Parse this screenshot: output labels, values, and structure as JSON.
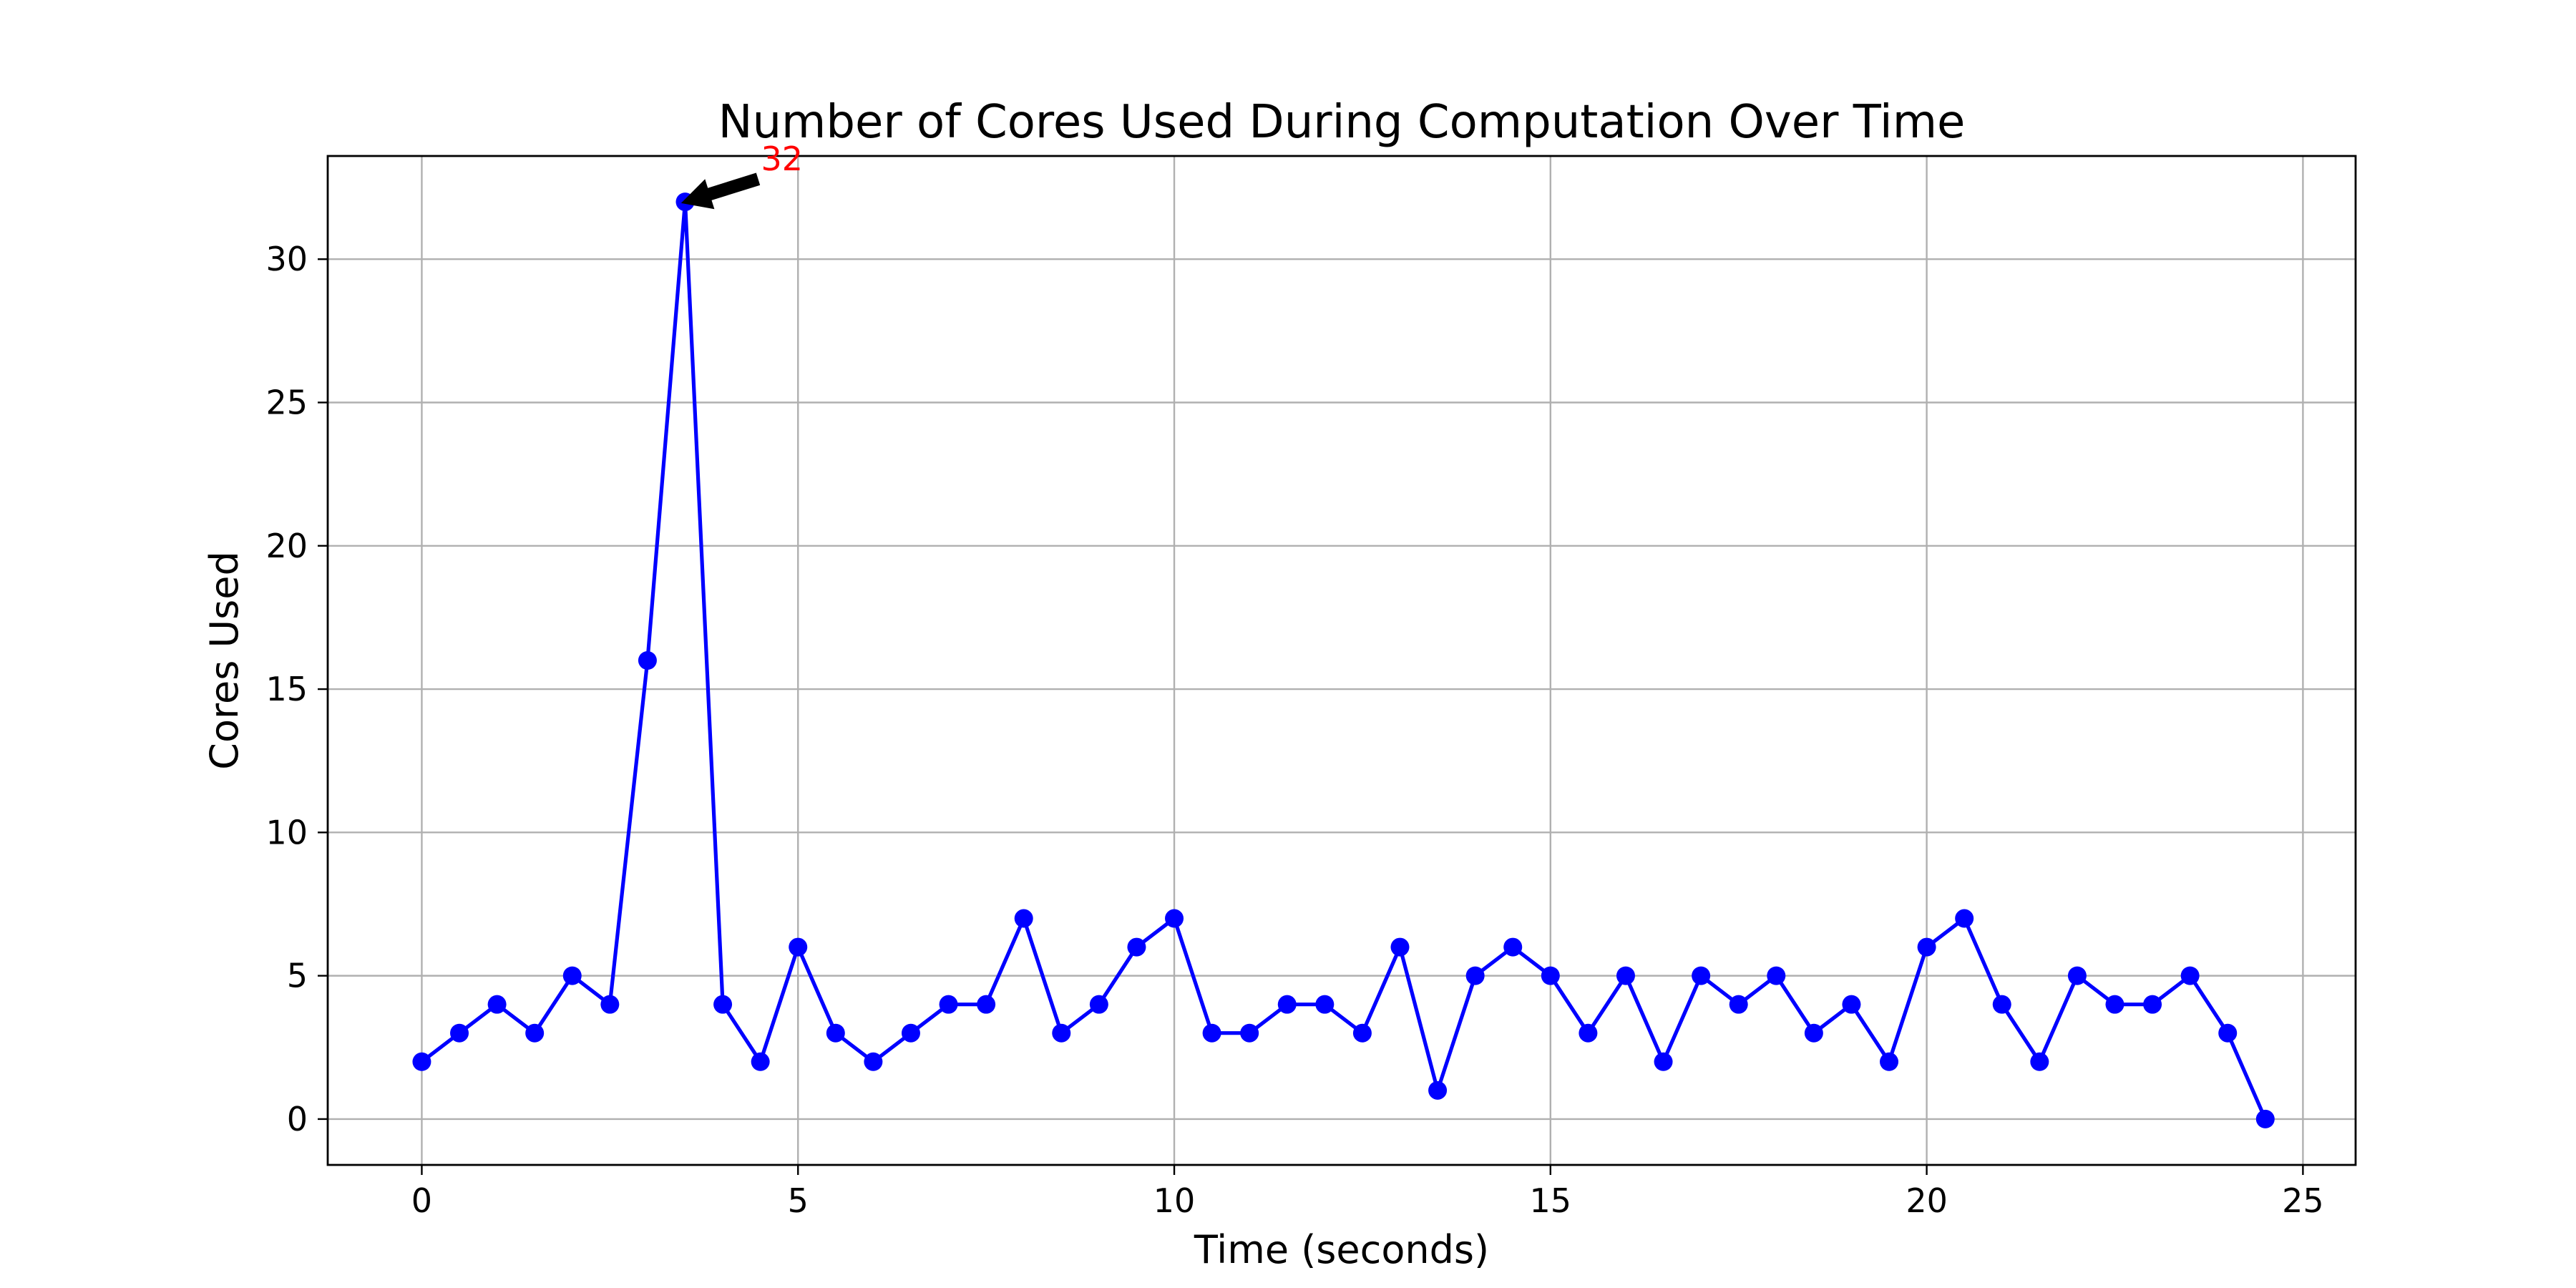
{
  "chart_data": {
    "type": "line",
    "title": "Number of Cores Used During Computation Over Time",
    "xlabel": "Time (seconds)",
    "ylabel": "Cores Used",
    "xlim": [
      -1.25,
      25.7
    ],
    "ylim": [
      -1.6,
      33.6
    ],
    "xticks": [
      0,
      5,
      10,
      15,
      20,
      25
    ],
    "yticks": [
      0,
      5,
      10,
      15,
      20,
      25,
      30
    ],
    "grid": true,
    "series": [
      {
        "color": "#0000ff",
        "marker": "circle",
        "x": [
          0,
          0.5,
          1,
          1.5,
          2,
          2.5,
          3,
          3.5,
          4,
          4.5,
          5,
          5.5,
          6,
          6.5,
          7,
          7.5,
          8,
          8.5,
          9,
          9.5,
          10,
          10.5,
          11,
          11.5,
          12,
          12.5,
          13,
          13.5,
          14,
          14.5,
          15,
          15.5,
          16,
          16.5,
          17,
          17.5,
          18,
          18.5,
          19,
          19.5,
          20,
          20.5,
          21,
          21.5,
          22,
          22.5,
          23,
          23.5,
          24,
          24.5
        ],
        "y": [
          2,
          3,
          4,
          3,
          5,
          4,
          16,
          32,
          4,
          2,
          6,
          3,
          2,
          3,
          4,
          4,
          7,
          3,
          4,
          6,
          7,
          3,
          3,
          4,
          4,
          3,
          6,
          1,
          5,
          6,
          5,
          3,
          5,
          2,
          5,
          4,
          5,
          3,
          4,
          2,
          6,
          7,
          4,
          2,
          5,
          4,
          4,
          5,
          3,
          0
        ]
      }
    ],
    "annotations": [
      {
        "text": "32",
        "x": 3.5,
        "y": 32,
        "color": "#ff0000"
      }
    ]
  }
}
